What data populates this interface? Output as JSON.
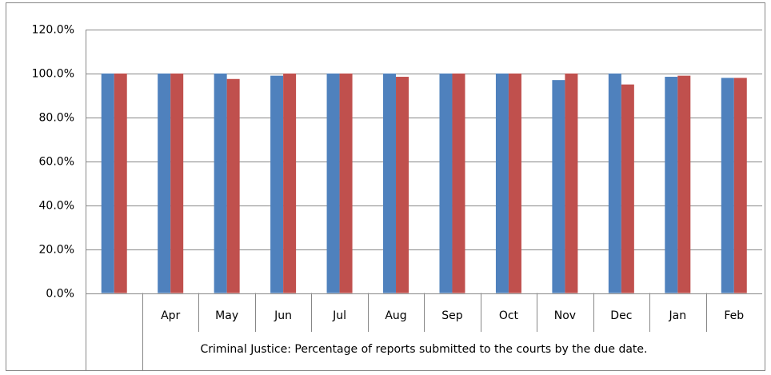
{
  "chart_data": {
    "type": "bar",
    "categories": [
      null,
      "Apr",
      "May",
      "Jun",
      "Jul",
      "Aug",
      "Sep",
      "Oct",
      "Nov",
      "Dec",
      "Jan",
      "Feb"
    ],
    "category_group_label": "Criminal Justice: Percentage of reports submitted to the courts by the due date.",
    "series": [
      {
        "color": "#4f81bd",
        "values": [
          100,
          100,
          100,
          99,
          100,
          100,
          100,
          100,
          97,
          100,
          98.5,
          98
        ]
      },
      {
        "color": "#c0504d",
        "values": [
          100,
          100,
          97.5,
          100,
          100,
          98.5,
          100,
          100,
          100,
          95,
          99,
          98
        ]
      }
    ],
    "ylim": [
      0,
      120
    ],
    "yticks": [
      {
        "value": 0,
        "label": "0.0%"
      },
      {
        "value": 20,
        "label": "20.0%"
      },
      {
        "value": 40,
        "label": "40.0%"
      },
      {
        "value": 60,
        "label": "60.0%"
      },
      {
        "value": 80,
        "label": "80.0%"
      },
      {
        "value": 100,
        "label": "100.0%"
      },
      {
        "value": 120,
        "label": "120.0%"
      }
    ],
    "grid": true
  }
}
